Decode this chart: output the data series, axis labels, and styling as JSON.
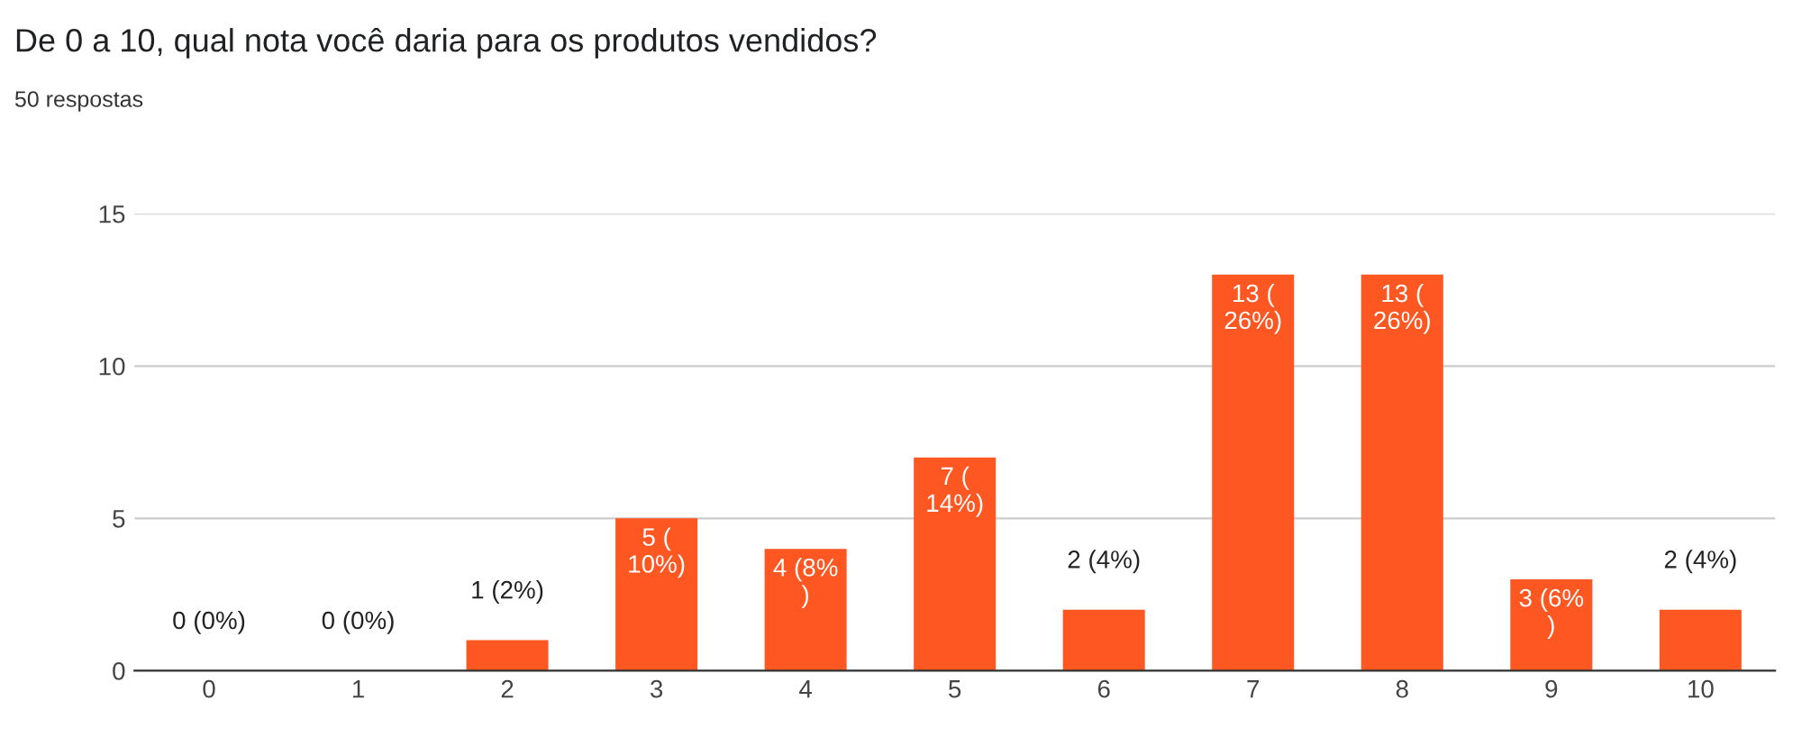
{
  "chart_data": {
    "type": "bar",
    "title": "De 0 a 10, qual nota você daria para os produtos vendidos?",
    "subtitle": "50 respostas",
    "categories": [
      "0",
      "1",
      "2",
      "3",
      "4",
      "5",
      "6",
      "7",
      "8",
      "9",
      "10"
    ],
    "values": [
      0,
      0,
      1,
      5,
      4,
      7,
      2,
      13,
      13,
      3,
      2
    ],
    "value_labels": [
      "0 (0%)",
      "0 (0%)",
      "1 (2%)",
      "5 (\n10%)",
      "4 (8%\n)",
      "7 (\n14%)",
      "2 (4%)",
      "13 (\n26%)",
      "13 (\n26%)",
      "3 (6%\n)",
      "2 (4%)"
    ],
    "color": "#ff5722",
    "ylim": [
      0,
      15
    ],
    "yticks": [
      0,
      5,
      10,
      15
    ],
    "grid": "y"
  }
}
